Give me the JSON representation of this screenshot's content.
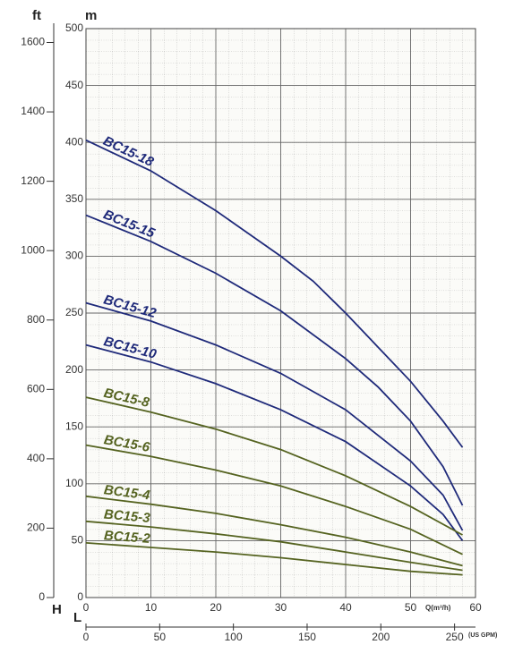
{
  "chart_data": {
    "type": "line",
    "y_label": "m",
    "y2_label": "ft",
    "h_label": "H",
    "l_label": "L",
    "x_label": "Q(m³/h)",
    "x2_label": "(US GPM)",
    "xlim": [
      0,
      60
    ],
    "xticks": [
      0,
      10,
      20,
      30,
      40,
      50,
      60
    ],
    "x2lim": [
      0,
      264.2
    ],
    "x2ticks": [
      0,
      50,
      100,
      150,
      200,
      250
    ],
    "ylim": [
      0,
      500
    ],
    "yticks": [
      0,
      50,
      100,
      150,
      200,
      250,
      300,
      350,
      400,
      450,
      500
    ],
    "y2lim": [
      0,
      1640
    ],
    "y2ticks": [
      0,
      200,
      400,
      600,
      800,
      1000,
      1200,
      1400,
      1600
    ],
    "grid": true,
    "series": [
      {
        "name": "BC15-18",
        "color": "#1f2a7a",
        "x": [
          0,
          10,
          20,
          30,
          35,
          40,
          45,
          50,
          55,
          58
        ],
        "values": [
          402,
          375,
          340,
          300,
          278,
          250,
          220,
          190,
          155,
          132
        ]
      },
      {
        "name": "BC15-15",
        "color": "#1f2a7a",
        "x": [
          0,
          10,
          20,
          30,
          40,
          45,
          50,
          55,
          58
        ],
        "values": [
          336,
          313,
          285,
          252,
          210,
          185,
          155,
          115,
          81
        ]
      },
      {
        "name": "BC15-12",
        "color": "#1f2a7a",
        "x": [
          0,
          10,
          20,
          30,
          40,
          50,
          55,
          58
        ],
        "values": [
          259,
          243,
          222,
          197,
          165,
          120,
          90,
          59
        ]
      },
      {
        "name": "BC15-10",
        "color": "#1f2a7a",
        "x": [
          0,
          10,
          20,
          30,
          40,
          50,
          55,
          58
        ],
        "values": [
          222,
          207,
          188,
          165,
          137,
          98,
          73,
          50
        ]
      },
      {
        "name": "BC15-8",
        "color": "#556320",
        "x": [
          0,
          10,
          20,
          30,
          40,
          50,
          58
        ],
        "values": [
          176,
          163,
          148,
          130,
          107,
          80,
          55
        ]
      },
      {
        "name": "BC15-6",
        "color": "#556320",
        "x": [
          0,
          10,
          20,
          30,
          40,
          50,
          58
        ],
        "values": [
          134,
          124,
          112,
          98,
          80,
          60,
          38
        ]
      },
      {
        "name": "BC15-4",
        "color": "#556320",
        "x": [
          0,
          10,
          20,
          30,
          40,
          50,
          58
        ],
        "values": [
          89,
          82,
          74,
          64,
          53,
          40,
          28
        ]
      },
      {
        "name": "BC15-3",
        "color": "#556320",
        "x": [
          0,
          10,
          20,
          30,
          40,
          50,
          58
        ],
        "values": [
          67,
          62,
          56,
          49,
          40,
          31,
          24
        ]
      },
      {
        "name": "BC15-2",
        "color": "#556320",
        "x": [
          0,
          10,
          20,
          30,
          40,
          50,
          58
        ],
        "values": [
          48,
          44,
          40,
          35,
          29,
          23,
          20
        ]
      }
    ]
  }
}
